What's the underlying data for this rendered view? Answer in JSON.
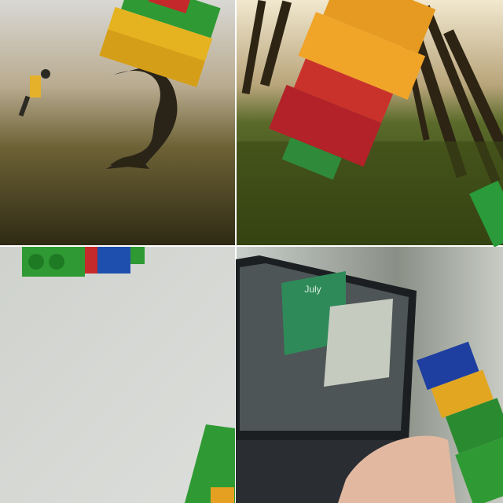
{
  "laptop_screen": {
    "calendar_month": "July"
  }
}
